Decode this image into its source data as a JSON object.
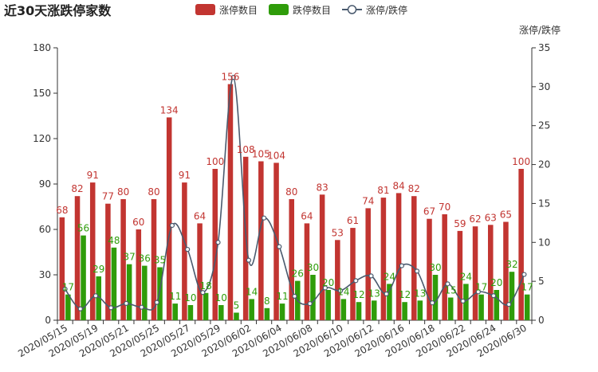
{
  "chart_data": {
    "type": "bar",
    "title": "近30天涨跌停家数",
    "legend": {
      "placement": "top-center",
      "items": [
        {
          "name": "涨停数目",
          "color": "#c23531",
          "kind": "bar"
        },
        {
          "name": "跌停数目",
          "color": "#2f9c0a",
          "kind": "bar"
        },
        {
          "name": "涨停/跌停",
          "color": "#4a5a6e",
          "kind": "line"
        }
      ]
    },
    "ylabel": "",
    "y2label": "涨停/跌停",
    "ylim": [
      0,
      180
    ],
    "yticks": [
      0,
      30,
      60,
      90,
      120,
      150,
      180
    ],
    "y2lim": [
      0,
      35
    ],
    "y2ticks": [
      0,
      5,
      10,
      15,
      20,
      25,
      30,
      35
    ],
    "xtick_labels": [
      "2020/05/15",
      "2020/05/19",
      "2020/05/21",
      "2020/05/25",
      "2020/05/27",
      "2020/05/29",
      "2020/06/02",
      "2020/06/04",
      "2020/06/08",
      "2020/06/10",
      "2020/06/12",
      "2020/06/16",
      "2020/06/18",
      "2020/06/22",
      "2020/06/24",
      "2020/06/30"
    ],
    "xtick_every": 2,
    "categories": [
      "2020/05/15",
      "2020/05/18",
      "2020/05/19",
      "2020/05/20",
      "2020/05/21",
      "2020/05/22",
      "2020/05/25",
      "2020/05/26",
      "2020/05/27",
      "2020/05/28",
      "2020/05/29",
      "2020/06/01",
      "2020/06/02",
      "2020/06/03",
      "2020/06/04",
      "2020/06/05",
      "2020/06/08",
      "2020/06/09",
      "2020/06/10",
      "2020/06/11",
      "2020/06/12",
      "2020/06/15",
      "2020/06/16",
      "2020/06/17",
      "2020/06/18",
      "2020/06/19",
      "2020/06/22",
      "2020/06/23",
      "2020/06/24",
      "2020/06/29",
      "2020/06/30"
    ],
    "series": [
      {
        "name": "涨停数目",
        "type": "bar",
        "axis": "left",
        "color": "#c23531",
        "values": [
          68,
          82,
          91,
          77,
          80,
          60,
          80,
          134,
          91,
          64,
          100,
          156,
          108,
          105,
          104,
          80,
          64,
          83,
          53,
          61,
          74,
          81,
          84,
          82,
          67,
          70,
          59,
          62,
          63,
          65,
          100
        ]
      },
      {
        "name": "跌停数目",
        "type": "bar",
        "axis": "left",
        "color": "#2f9c0a",
        "values": [
          17,
          56,
          29,
          48,
          37,
          36,
          35,
          11,
          10,
          18,
          10,
          5,
          14,
          8,
          11,
          26,
          30,
          20,
          14,
          12,
          13,
          24,
          12,
          13,
          30,
          15,
          24,
          17,
          20,
          32,
          17
        ]
      },
      {
        "name": "涨停/跌停",
        "type": "line",
        "axis": "right",
        "color": "#4a5a6e",
        "smooth": true,
        "values": [
          4.0,
          1.46,
          3.14,
          1.6,
          2.16,
          1.67,
          2.29,
          12.18,
          9.1,
          3.56,
          10.0,
          31.2,
          7.71,
          13.13,
          9.45,
          3.08,
          2.13,
          4.15,
          3.79,
          5.08,
          5.69,
          3.38,
          7.0,
          6.31,
          2.23,
          4.67,
          2.46,
          3.65,
          3.15,
          2.03,
          5.88
        ]
      }
    ],
    "grid": false
  }
}
